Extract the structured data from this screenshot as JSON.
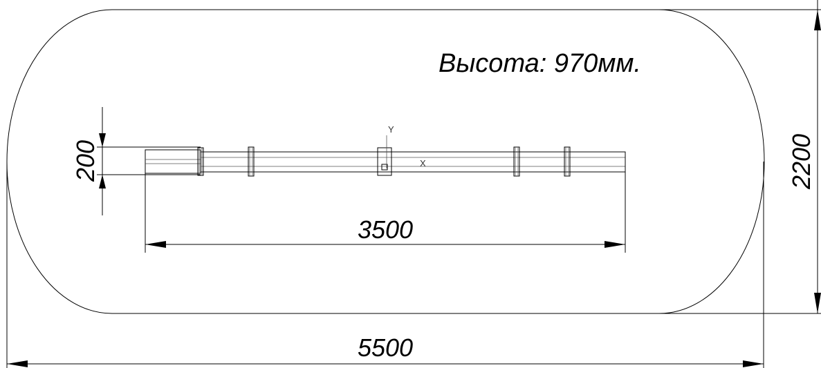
{
  "drawing": {
    "height_note": "Высота: 970мм.",
    "dimensions": {
      "overall_length": "5500",
      "overall_width": "2200",
      "beam_length": "3500",
      "beam_width": "200"
    },
    "axis_labels": {
      "y": "Y",
      "x": "X"
    }
  }
}
